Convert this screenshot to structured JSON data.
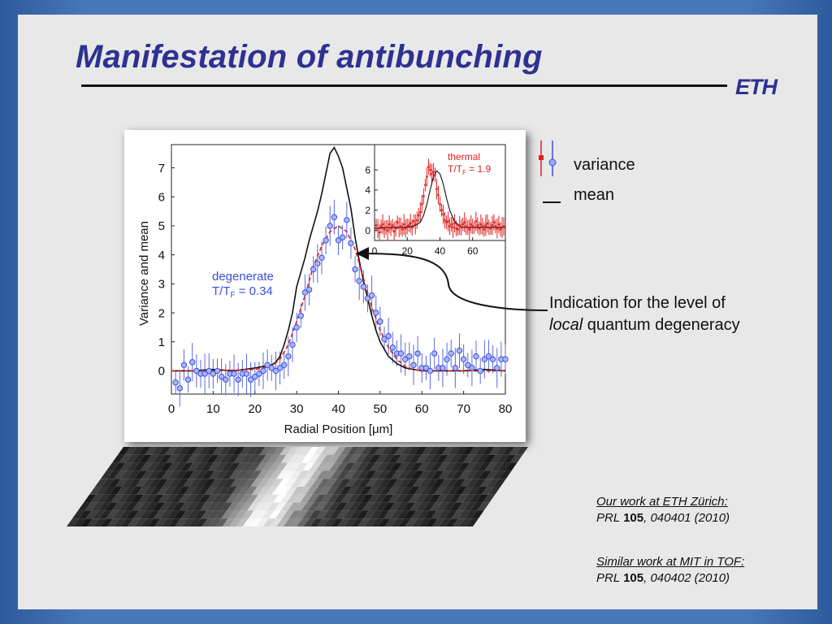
{
  "slide": {
    "title": "Manifestation of antibunching",
    "logo_text": "ETH"
  },
  "legend": {
    "variance_label": "variance",
    "mean_label": "mean"
  },
  "annotation": {
    "line1": "Indication for the level of",
    "line2_italic": "local",
    "line2_rest": " quantum degeneracy"
  },
  "references": [
    {
      "heading": "Our work at ETH Zürich:",
      "journal": "PRL ",
      "volume": "105",
      "rest": ", 040401 (2010)"
    },
    {
      "heading": "Similar work at MIT in TOF:",
      "journal": "PRL ",
      "volume": "105",
      "rest": ", 040402 (2010)"
    }
  ],
  "colors": {
    "title": "#2e3192",
    "variance_blue": "#3a4fd8",
    "thermal_red": "#e02020",
    "mean_black": "#111111"
  },
  "chart_data": [
    {
      "type": "scatter",
      "xlabel": "Radial Position [μm]",
      "ylabel": "Variance and mean",
      "xlim": [
        0,
        80
      ],
      "ylim": [
        -0.8,
        7.8
      ],
      "xticks": [
        0,
        10,
        20,
        30,
        40,
        50,
        60,
        70,
        80
      ],
      "yticks": [
        0,
        1,
        2,
        3,
        4,
        5,
        6,
        7
      ],
      "annotation_title": "degenerate",
      "annotation_ratio": "T/T",
      "annotation_sub": "F",
      "annotation_value": " = 0.34",
      "series": [
        {
          "name": "variance",
          "x": [
            1,
            2,
            3,
            4,
            5,
            6,
            7,
            8,
            9,
            10,
            11,
            12,
            13,
            14,
            15,
            16,
            17,
            18,
            19,
            20,
            21,
            22,
            23,
            24,
            25,
            26,
            27,
            28,
            29,
            30,
            31,
            32,
            33,
            34,
            35,
            36,
            37,
            38,
            39,
            40,
            41,
            42,
            43,
            44,
            45,
            46,
            47,
            48,
            49,
            50,
            51,
            52,
            53,
            54,
            55,
            56,
            57,
            58,
            59,
            60,
            61,
            62,
            63,
            64,
            65,
            66,
            67,
            68,
            69,
            70,
            71,
            72,
            73,
            74,
            75,
            76,
            77,
            78,
            79,
            80
          ],
          "y": [
            -0.4,
            -0.6,
            0.2,
            -0.3,
            0.3,
            0.0,
            -0.1,
            -0.1,
            0.0,
            -0.1,
            0.0,
            -0.2,
            -0.3,
            -0.1,
            -0.1,
            -0.3,
            -0.1,
            -0.1,
            -0.3,
            -0.2,
            -0.1,
            0.0,
            0.2,
            0.1,
            0.0,
            0.1,
            0.2,
            0.5,
            0.9,
            1.5,
            1.9,
            2.7,
            2.8,
            3.5,
            3.7,
            3.9,
            4.5,
            5.0,
            5.3,
            4.5,
            4.6,
            5.2,
            4.4,
            3.5,
            3.1,
            2.9,
            2.5,
            2.6,
            2.0,
            1.7,
            1.1,
            1.2,
            0.8,
            0.6,
            0.6,
            0.4,
            0.5,
            0.2,
            0.6,
            0.1,
            0.1,
            0.0,
            0.6,
            0.1,
            0.1,
            0.4,
            0.6,
            0.1,
            0.7,
            0.4,
            0.2,
            0.1,
            0.5,
            0.0,
            0.4,
            0.5,
            0.4,
            0.1,
            0.4,
            0.4
          ],
          "err": 0.6
        },
        {
          "name": "mean",
          "x": [
            0,
            5,
            10,
            15,
            20,
            22,
            24,
            25,
            26,
            27,
            28,
            29,
            30,
            31,
            32,
            33,
            34,
            35,
            36,
            37,
            38,
            39,
            40,
            41,
            42,
            43,
            44,
            45,
            46,
            47,
            48,
            49,
            50,
            52,
            54,
            56,
            58,
            60,
            65,
            70,
            75,
            80
          ],
          "y": [
            0.0,
            0.0,
            0.05,
            0.0,
            0.1,
            0.15,
            0.2,
            0.3,
            0.5,
            0.9,
            1.4,
            2.0,
            2.9,
            3.4,
            3.9,
            4.5,
            5.0,
            5.5,
            6.1,
            6.8,
            7.5,
            7.7,
            7.4,
            7.0,
            6.3,
            5.6,
            4.6,
            3.8,
            3.1,
            2.5,
            1.9,
            1.4,
            1.0,
            0.5,
            0.25,
            0.1,
            0.05,
            0.0,
            0.0,
            0.0,
            0.05,
            0.0
          ]
        },
        {
          "name": "fit",
          "x": [
            0,
            10,
            20,
            24,
            26,
            28,
            30,
            32,
            34,
            36,
            38,
            40,
            42,
            44,
            46,
            48,
            50,
            52,
            54,
            56,
            58,
            60,
            65,
            70,
            75,
            80
          ],
          "y": [
            0.0,
            0.0,
            0.05,
            0.15,
            0.4,
            0.9,
            1.7,
            2.6,
            3.6,
            4.3,
            4.8,
            5.0,
            4.8,
            4.2,
            3.2,
            2.2,
            1.4,
            0.8,
            0.4,
            0.15,
            0.05,
            0.0,
            0.0,
            0.0,
            0.0,
            0.0
          ]
        }
      ]
    },
    {
      "type": "scatter",
      "xlim": [
        0,
        80
      ],
      "ylim": [
        -1,
        8.5
      ],
      "xticks": [
        0,
        20,
        40,
        60
      ],
      "yticks": [
        0,
        2,
        4,
        6
      ],
      "annotation_title": "thermal",
      "annotation_ratio": "T/T",
      "annotation_sub": "F",
      "annotation_value": " = 1.9",
      "series": [
        {
          "name": "variance",
          "x": [
            1,
            2,
            3,
            4,
            5,
            6,
            7,
            8,
            9,
            10,
            11,
            12,
            13,
            14,
            15,
            16,
            17,
            18,
            19,
            20,
            21,
            22,
            23,
            24,
            25,
            26,
            27,
            28,
            29,
            30,
            31,
            32,
            33,
            34,
            35,
            36,
            37,
            38,
            39,
            40,
            41,
            42,
            43,
            44,
            45,
            46,
            47,
            48,
            49,
            50,
            51,
            52,
            53,
            54,
            55,
            56,
            57,
            58,
            59,
            60,
            61,
            62,
            63,
            64,
            65,
            66,
            67,
            68,
            69,
            70,
            71,
            72,
            73,
            74,
            75,
            76,
            77,
            78,
            79
          ],
          "y": [
            0.5,
            0.2,
            -0.2,
            0.4,
            0.6,
            0.1,
            0.3,
            0.0,
            0.6,
            0.2,
            0.5,
            -0.1,
            0.2,
            0.8,
            0.3,
            0.4,
            0.1,
            0.6,
            0.2,
            0.4,
            0.5,
            0.7,
            0.3,
            0.9,
            0.6,
            1.0,
            1.5,
            1.8,
            2.6,
            3.4,
            4.5,
            5.3,
            6.3,
            6.0,
            5.6,
            5.8,
            5.5,
            4.1,
            3.5,
            2.6,
            2.0,
            1.6,
            1.0,
            0.8,
            0.9,
            0.4,
            0.6,
            0.3,
            0.7,
            0.2,
            0.1,
            0.5,
            0.3,
            0.6,
            0.8,
            0.4,
            0.3,
            0.1,
            0.6,
            0.4,
            0.3,
            0.9,
            0.5,
            0.2,
            0.6,
            0.4,
            0.1,
            0.5,
            0.7,
            0.3,
            0.2,
            0.5,
            0.8,
            0.4,
            0.2,
            0.6,
            0.1,
            0.3,
            0.4
          ],
          "err": 0.9
        },
        {
          "name": "mean",
          "x": [
            0,
            10,
            20,
            25,
            28,
            30,
            32,
            34,
            36,
            38,
            40,
            42,
            44,
            46,
            48,
            50,
            52,
            55,
            60,
            70,
            80
          ],
          "y": [
            0.2,
            0.3,
            0.3,
            0.5,
            0.8,
            1.5,
            2.6,
            4.0,
            5.3,
            5.9,
            5.6,
            4.6,
            3.2,
            2.0,
            1.2,
            0.7,
            0.4,
            0.3,
            0.3,
            0.3,
            0.3
          ]
        }
      ]
    }
  ]
}
